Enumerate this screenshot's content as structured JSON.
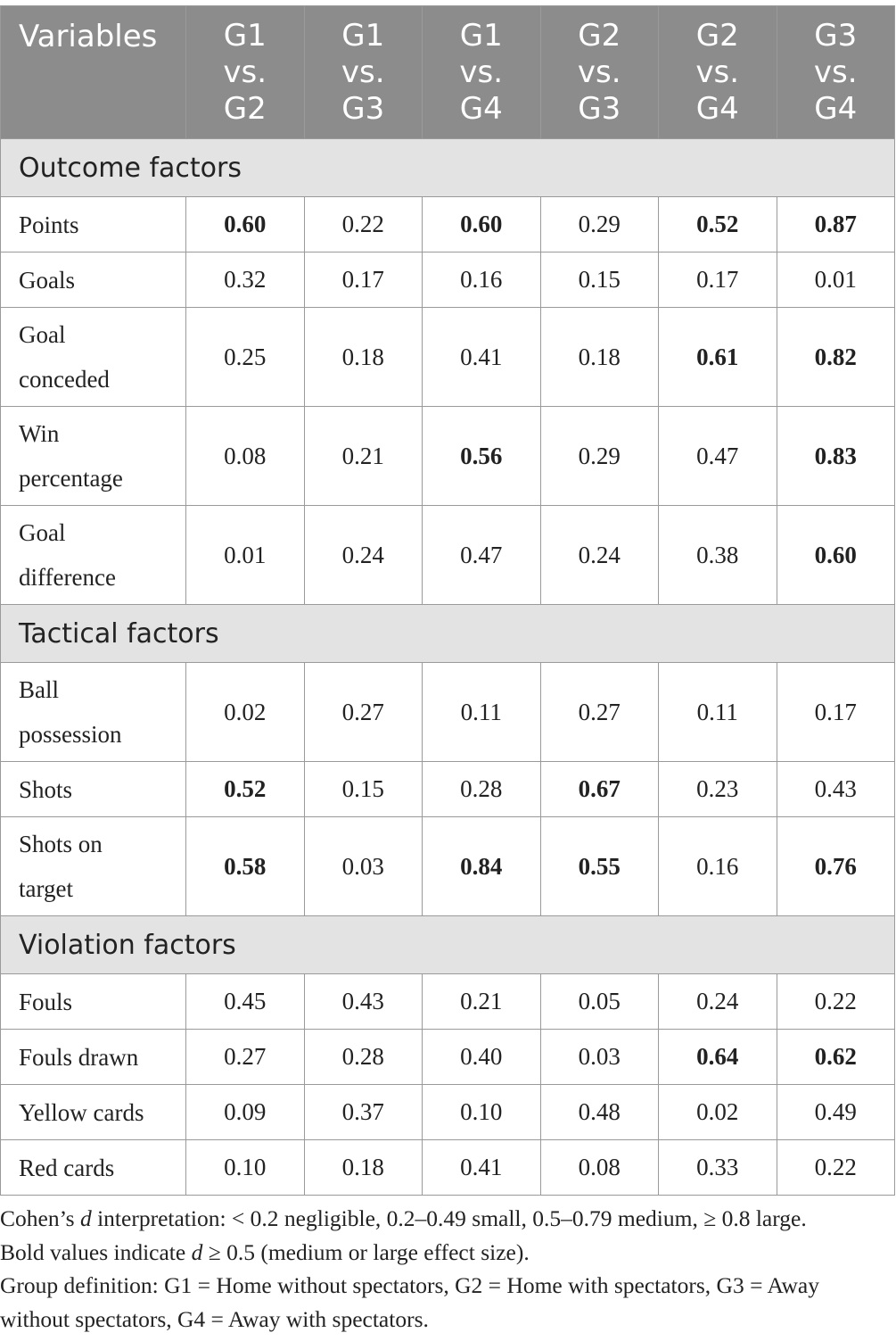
{
  "header": {
    "variables_label": "Variables",
    "comparisons": [
      [
        "G1",
        "vs.",
        "G2"
      ],
      [
        "G1",
        "vs.",
        "G3"
      ],
      [
        "G1",
        "vs.",
        "G4"
      ],
      [
        "G2",
        "vs.",
        "G3"
      ],
      [
        "G2",
        "vs.",
        "G4"
      ],
      [
        "G3",
        "vs.",
        "G4"
      ]
    ]
  },
  "sections": [
    {
      "title": "Outcome factors",
      "rows": [
        {
          "label": "Points",
          "values": [
            "0.60",
            "0.22",
            "0.60",
            "0.29",
            "0.52",
            "0.87"
          ],
          "bold": [
            true,
            false,
            true,
            false,
            true,
            true
          ]
        },
        {
          "label": "Goals",
          "values": [
            "0.32",
            "0.17",
            "0.16",
            "0.15",
            "0.17",
            "0.01"
          ],
          "bold": [
            false,
            false,
            false,
            false,
            false,
            false
          ]
        },
        {
          "label": "Goal conceded",
          "values": [
            "0.25",
            "0.18",
            "0.41",
            "0.18",
            "0.61",
            "0.82"
          ],
          "bold": [
            false,
            false,
            false,
            false,
            true,
            true
          ]
        },
        {
          "label": "Win percentage",
          "values": [
            "0.08",
            "0.21",
            "0.56",
            "0.29",
            "0.47",
            "0.83"
          ],
          "bold": [
            false,
            false,
            true,
            false,
            false,
            true
          ]
        },
        {
          "label": "Goal difference",
          "values": [
            "0.01",
            "0.24",
            "0.47",
            "0.24",
            "0.38",
            "0.60"
          ],
          "bold": [
            false,
            false,
            false,
            false,
            false,
            true
          ]
        }
      ]
    },
    {
      "title": "Tactical factors",
      "rows": [
        {
          "label": "Ball possession",
          "values": [
            "0.02",
            "0.27",
            "0.11",
            "0.27",
            "0.11",
            "0.17"
          ],
          "bold": [
            false,
            false,
            false,
            false,
            false,
            false
          ]
        },
        {
          "label": "Shots",
          "values": [
            "0.52",
            "0.15",
            "0.28",
            "0.67",
            "0.23",
            "0.43"
          ],
          "bold": [
            true,
            false,
            false,
            true,
            false,
            false
          ]
        },
        {
          "label": "Shots on target",
          "values": [
            "0.58",
            "0.03",
            "0.84",
            "0.55",
            "0.16",
            "0.76"
          ],
          "bold": [
            true,
            false,
            true,
            true,
            false,
            true
          ]
        }
      ]
    },
    {
      "title": "Violation factors",
      "rows": [
        {
          "label": "Fouls",
          "values": [
            "0.45",
            "0.43",
            "0.21",
            "0.05",
            "0.24",
            "0.22"
          ],
          "bold": [
            false,
            false,
            false,
            false,
            false,
            false
          ]
        },
        {
          "label": "Fouls drawn",
          "values": [
            "0.27",
            "0.28",
            "0.40",
            "0.03",
            "0.64",
            "0.62"
          ],
          "bold": [
            false,
            false,
            false,
            false,
            true,
            true
          ]
        },
        {
          "label": "Yellow cards",
          "values": [
            "0.09",
            "0.37",
            "0.10",
            "0.48",
            "0.02",
            "0.49"
          ],
          "bold": [
            false,
            false,
            false,
            false,
            false,
            false
          ]
        },
        {
          "label": "Red cards",
          "values": [
            "0.10",
            "0.18",
            "0.41",
            "0.08",
            "0.33",
            "0.22"
          ],
          "bold": [
            false,
            false,
            false,
            false,
            false,
            false
          ]
        }
      ]
    }
  ],
  "notes": {
    "line1_pre": "Cohen’s ",
    "line1_italic": "d",
    "line1_post": " interpretation: < 0.2 negligible, 0.2–0.49 small, 0.5–0.79 medium, ≥ 0.8 large.",
    "line2_pre": "Bold values indicate ",
    "line2_italic": "d",
    "line2_post": " ≥ 0.5 (medium or large effect size).",
    "line3": "Group definition: G1 = Home without spectators, G2 = Home with spectators, G3 = Away without spectators, G4 = Away with spectators."
  }
}
